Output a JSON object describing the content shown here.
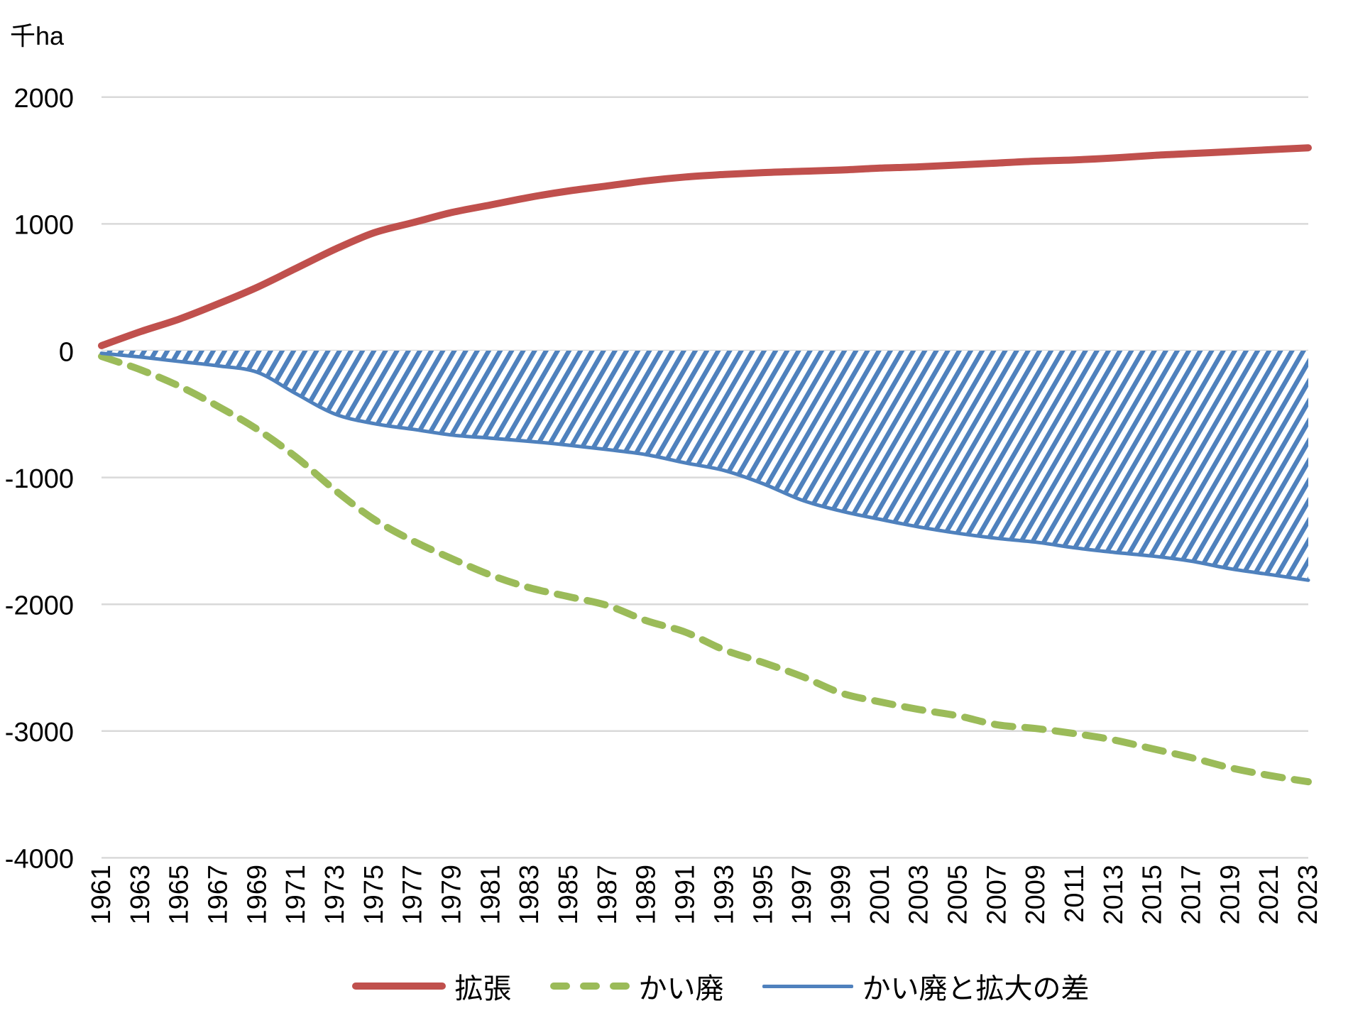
{
  "unit_label": "千ha",
  "colors": {
    "expansion": "#C0504D",
    "abolition": "#9BBB59",
    "difference": "#4F81BD",
    "gridline": "#D9D9D9",
    "text": "#000000",
    "background": "#FFFFFF"
  },
  "chart_data": {
    "type": "line",
    "title": "",
    "ylabel": "千ha",
    "xlabel": "",
    "ylim": [
      -4000,
      2000
    ],
    "yticks": [
      2000,
      1000,
      0,
      -1000,
      -2000,
      -3000,
      -4000
    ],
    "grid": "horizontal-only",
    "legend_position": "bottom",
    "x": [
      1961,
      1963,
      1965,
      1967,
      1969,
      1971,
      1973,
      1975,
      1977,
      1979,
      1981,
      1983,
      1985,
      1987,
      1989,
      1991,
      1993,
      1995,
      1997,
      1999,
      2001,
      2003,
      2005,
      2007,
      2009,
      2011,
      2013,
      2015,
      2017,
      2019,
      2021,
      2023
    ],
    "series": [
      {
        "name": "拡張",
        "color": "#C0504D",
        "style": "solid-thick",
        "values": [
          40,
          150,
          250,
          370,
          500,
          650,
          800,
          930,
          1010,
          1090,
          1150,
          1210,
          1260,
          1300,
          1340,
          1370,
          1390,
          1405,
          1415,
          1425,
          1440,
          1450,
          1465,
          1480,
          1495,
          1505,
          1520,
          1540,
          1555,
          1570,
          1585,
          1600
        ]
      },
      {
        "name": "かい廃",
        "color": "#9BBB59",
        "style": "dashed",
        "values": [
          -45,
          -150,
          -280,
          -440,
          -620,
          -840,
          -1100,
          -1330,
          -1500,
          -1640,
          -1770,
          -1870,
          -1940,
          -2010,
          -2130,
          -2220,
          -2360,
          -2460,
          -2570,
          -2700,
          -2770,
          -2830,
          -2880,
          -2950,
          -2980,
          -3020,
          -3070,
          -3140,
          -3210,
          -3290,
          -3350,
          -3400
        ]
      },
      {
        "name": "かい廃と拡大の差",
        "color": "#4F81BD",
        "style": "solid-thin-hatch-area",
        "values": [
          -20,
          -50,
          -85,
          -120,
          -170,
          -340,
          -500,
          -575,
          -620,
          -665,
          -690,
          -715,
          -745,
          -780,
          -820,
          -885,
          -945,
          -1050,
          -1180,
          -1265,
          -1330,
          -1390,
          -1440,
          -1480,
          -1510,
          -1555,
          -1590,
          -1620,
          -1660,
          -1720,
          -1765,
          -1810
        ]
      }
    ]
  }
}
